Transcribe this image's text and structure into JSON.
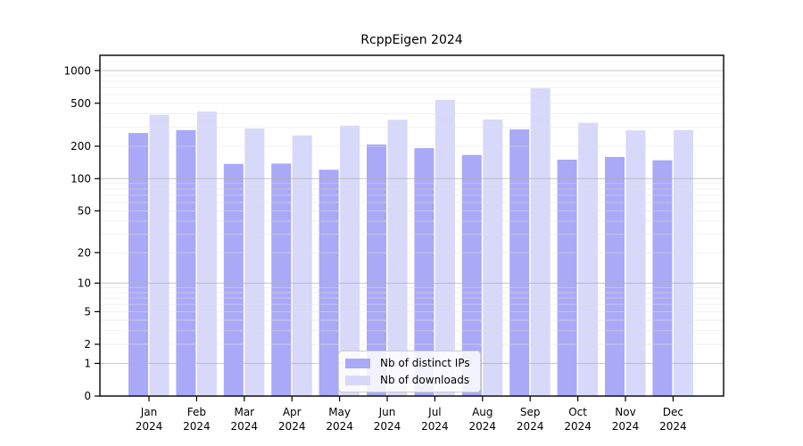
{
  "chart_data": {
    "type": "bar",
    "title": "RcppEigen 2024",
    "xlabel": "",
    "ylabel": "",
    "yscale": "log1p",
    "grid": "horizontal",
    "ylim": [
      0,
      1385
    ],
    "yticks": [
      0,
      1,
      2,
      5,
      10,
      20,
      50,
      100,
      200,
      500,
      1000
    ],
    "categories": [
      "Jan",
      "Feb",
      "Mar",
      "Apr",
      "May",
      "Jun",
      "Jul",
      "Aug",
      "Sep",
      "Oct",
      "Nov",
      "Dec"
    ],
    "category_year": "2024",
    "series": [
      {
        "name": "Nb of distinct IPs",
        "color": "#a9a9f7",
        "values": [
          265,
          282,
          137,
          138,
          121,
          208,
          192,
          166,
          286,
          150,
          159,
          148
        ]
      },
      {
        "name": "Nb of downloads",
        "color": "#d8d8fa",
        "values": [
          391,
          418,
          292,
          252,
          310,
          352,
          537,
          354,
          688,
          330,
          280,
          282
        ]
      }
    ],
    "legend": {
      "position": "inside-bottom-center",
      "items": [
        "Nb of distinct IPs",
        "Nb of downloads"
      ]
    },
    "colors": {
      "axis": "#000000",
      "major_grid": "#b0b0b0",
      "minor_grid": "#e2e2e2",
      "tick_text": "#000000",
      "background": "#ffffff"
    }
  }
}
